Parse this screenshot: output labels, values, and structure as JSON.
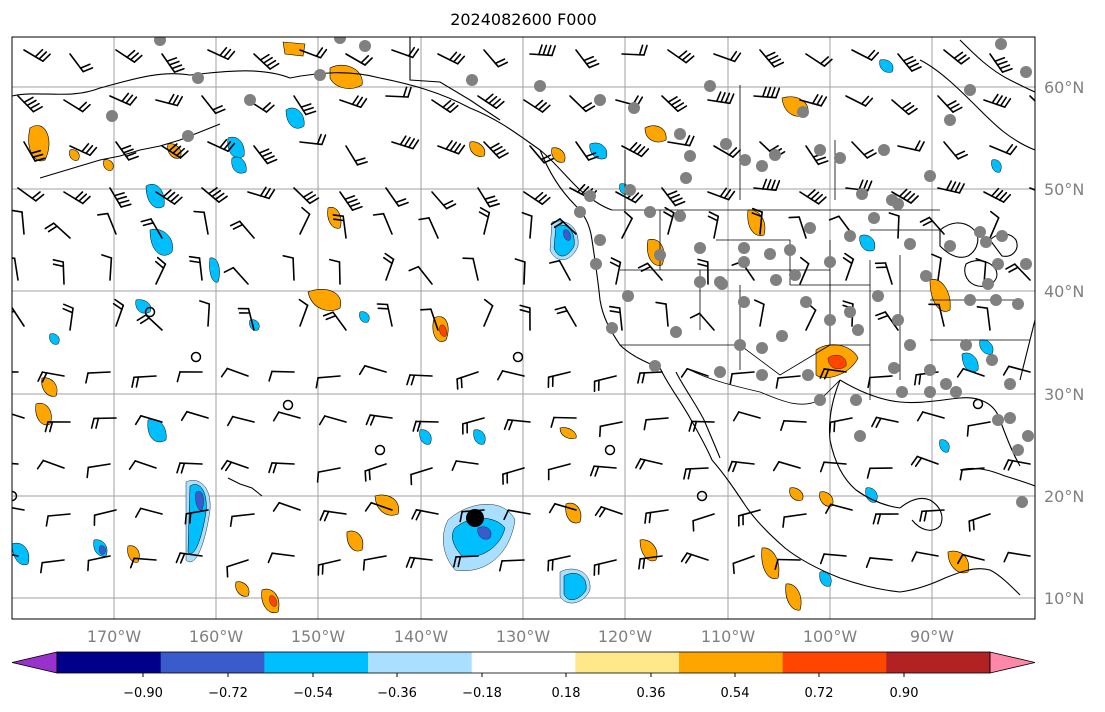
{
  "title": "2024082600 F000",
  "map": {
    "projection": "plate carree",
    "lon_range": [
      -180,
      -80
    ],
    "lat_range": [
      8,
      65
    ],
    "grid": true,
    "lat_labels": [
      "60°N",
      "50°N",
      "40°N",
      "30°N",
      "20°N",
      "10°N"
    ],
    "lon_labels": [
      "170°W",
      "160°W",
      "150°W",
      "140°W",
      "130°W",
      "120°W",
      "110°W",
      "100°W",
      "90°W"
    ],
    "colors": {
      "grid": "#a0a0a0",
      "coast": "#000000",
      "station_dot": "#808080"
    }
  },
  "colorbar": {
    "ticks": [
      "−0.90",
      "−0.72",
      "−0.54",
      "−0.36",
      "−0.18",
      "0.18",
      "0.36",
      "0.54",
      "0.72",
      "0.90"
    ],
    "colors": [
      "#9932cc",
      "#00008b",
      "#3a5bcc",
      "#00bfff",
      "#aadfff",
      "#ffffff",
      "#ffe88a",
      "#ffa500",
      "#ff4500",
      "#b22222",
      "#ff88aa"
    ]
  }
}
